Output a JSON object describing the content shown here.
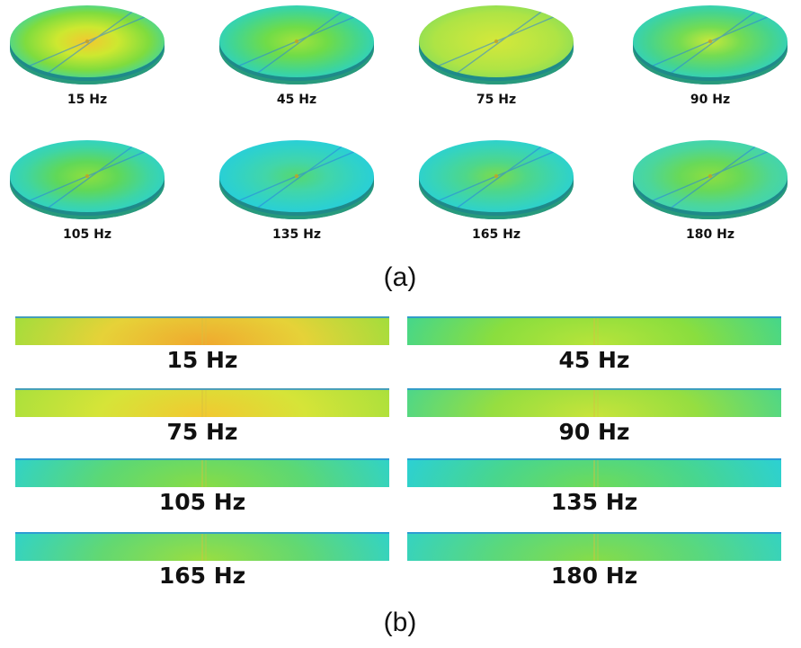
{
  "panel_a": {
    "label": "(a)",
    "items": [
      {
        "label": "15 Hz",
        "colors": [
          "#f2c830",
          "#cde830",
          "#7fdc3e",
          "#2ed3c6"
        ]
      },
      {
        "label": "45 Hz",
        "colors": [
          "#a5e23a",
          "#6fdc48",
          "#44d68e",
          "#24cfd8"
        ]
      },
      {
        "label": "75 Hz",
        "colors": [
          "#d4e83a",
          "#c2e640",
          "#aee445",
          "#80dc5e"
        ]
      },
      {
        "label": "90 Hz",
        "colors": [
          "#c8e83a",
          "#74dc52",
          "#46d48e",
          "#28d0d6"
        ]
      },
      {
        "label": "105 Hz",
        "colors": [
          "#8fdf3e",
          "#60d858",
          "#3ed5a5",
          "#27d0d8"
        ]
      },
      {
        "label": "135 Hz",
        "colors": [
          "#55d870",
          "#42d6a8",
          "#30d2c8",
          "#22cce4"
        ]
      },
      {
        "label": "165 Hz",
        "colors": [
          "#7bdb4c",
          "#4ed78a",
          "#38d4b8",
          "#23cfe0"
        ]
      },
      {
        "label": "180 Hz",
        "colors": [
          "#8ede3f",
          "#68d958",
          "#4cd69a",
          "#3bd3c0"
        ]
      }
    ]
  },
  "panel_b": {
    "label": "(b)",
    "items": [
      {
        "label": "15 Hz",
        "colors": [
          "#f0a82e",
          "#e6d238",
          "#9ede3c"
        ]
      },
      {
        "label": "45 Hz",
        "colors": [
          "#b8e43a",
          "#8ade3e",
          "#40d690"
        ]
      },
      {
        "label": "75 Hz",
        "colors": [
          "#f2c830",
          "#d6e438",
          "#a8e03c"
        ]
      },
      {
        "label": "90 Hz",
        "colors": [
          "#c8e43a",
          "#96de40",
          "#48d68e"
        ]
      },
      {
        "label": "105 Hz",
        "colors": [
          "#88dc44",
          "#5cd874",
          "#2ed2cc"
        ]
      },
      {
        "label": "135 Hz",
        "colors": [
          "#6edb58",
          "#48d68e",
          "#2ad0d8"
        ]
      },
      {
        "label": "165 Hz",
        "colors": [
          "#9ade40",
          "#62d872",
          "#2ed2cc"
        ]
      },
      {
        "label": "180 Hz",
        "colors": [
          "#86dc48",
          "#5ad87c",
          "#32d2c6"
        ]
      }
    ]
  }
}
